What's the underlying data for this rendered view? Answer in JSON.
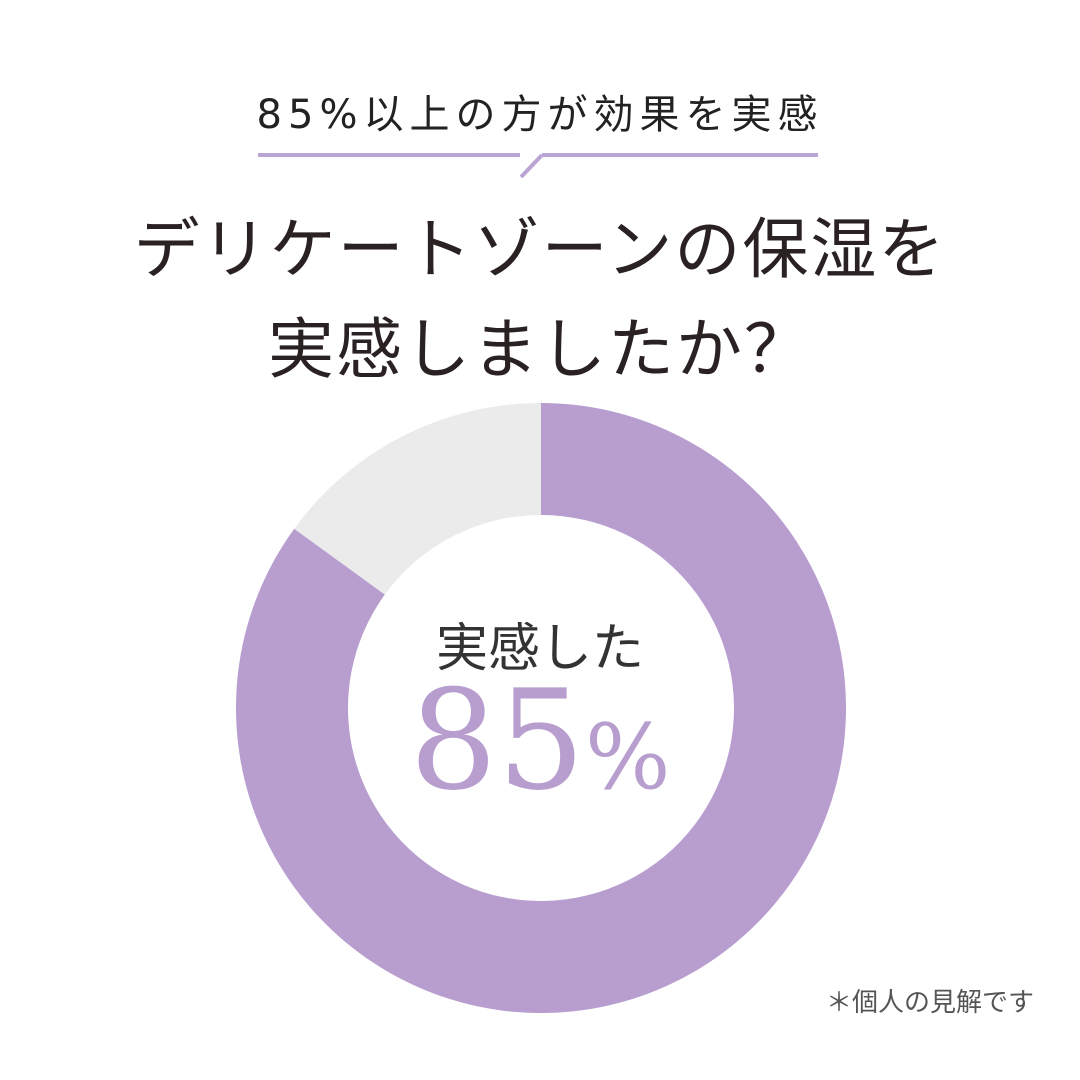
{
  "subtitle": "85%以上の方が効果を実感",
  "title_line1": "デリケートゾーンの保湿を",
  "title_line2": "実感しましたか？",
  "center_label": "実感した",
  "center_number": "85",
  "center_unit": "%",
  "footnote": "＊個人の見解です",
  "colors": {
    "accent": "#b89dcf",
    "rest": "#ebebeb",
    "line": "#b9a4d3"
  },
  "chart_data": {
    "type": "pie",
    "variant": "donut",
    "categories": [
      "実感した",
      ""
    ],
    "values": [
      85,
      15
    ],
    "colors": [
      "#b89dcf",
      "#ebebeb"
    ],
    "start": "top",
    "direction": "clockwise"
  }
}
